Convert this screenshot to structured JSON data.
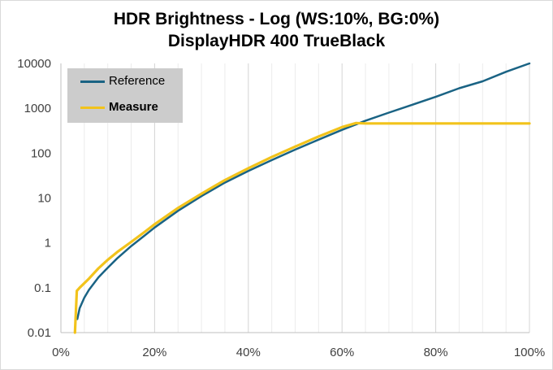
{
  "chart_data": {
    "type": "line",
    "title_line1": "HDR Brightness - Log (WS:10%, BG:0%)",
    "title_line2": "DisplayHDR 400 TrueBlack",
    "xlabel": "",
    "ylabel": "",
    "x_scale": "linear",
    "y_scale": "log",
    "xlim": [
      0,
      100
    ],
    "ylim": [
      0.01,
      10000
    ],
    "x_ticks": [
      0,
      20,
      40,
      60,
      80,
      100
    ],
    "x_tick_labels": [
      "0%",
      "20%",
      "40%",
      "60%",
      "80%",
      "100%"
    ],
    "y_ticks": [
      0.01,
      0.1,
      1,
      10,
      100,
      1000,
      10000
    ],
    "y_tick_labels": [
      "0.01",
      "0.1",
      "1",
      "10",
      "100",
      "1000",
      "10000"
    ],
    "grid": "vertical",
    "legend_position": "top-left",
    "series": [
      {
        "name": "Reference",
        "color": "#1a6384",
        "x": [
          3.5,
          4,
          5,
          6,
          8,
          10,
          12,
          15,
          18,
          20,
          25,
          30,
          35,
          40,
          45,
          50,
          55,
          60,
          65,
          70,
          75,
          80,
          85,
          90,
          95,
          100
        ],
        "y": [
          0.02,
          0.035,
          0.06,
          0.09,
          0.17,
          0.28,
          0.45,
          0.85,
          1.5,
          2.2,
          5.2,
          11,
          22,
          40,
          70,
          120,
          200,
          330,
          530,
          800,
          1200,
          1800,
          2800,
          4000,
          6500,
          10000
        ]
      },
      {
        "name": "Measure",
        "color": "#f2c31b",
        "x": [
          3,
          3.4,
          4,
          6,
          8,
          10,
          12,
          15,
          18,
          20,
          25,
          30,
          35,
          40,
          45,
          50,
          55,
          60,
          63,
          65,
          70,
          80,
          90,
          100
        ],
        "y": [
          0.01,
          0.085,
          0.1,
          0.16,
          0.27,
          0.42,
          0.62,
          1.05,
          1.8,
          2.6,
          6.0,
          12.5,
          25,
          46,
          82,
          140,
          235,
          380,
          470,
          460,
          460,
          460,
          460,
          460
        ]
      }
    ]
  }
}
